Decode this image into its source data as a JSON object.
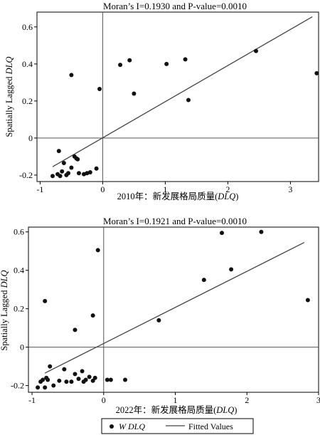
{
  "chart_data": [
    {
      "type": "scatter",
      "title": "Moran’s I=0.1930 and P-value=0.0010",
      "xlabel_prefix": "2010年：新发展格局质量(",
      "xlabel_var": "DLQ",
      "xlabel_suffix": ")",
      "ylabel_prefix": "Spatially Lagged ",
      "ylabel_var": "DLQ",
      "xlim": [
        -1.05,
        3.45
      ],
      "ylim": [
        -0.235,
        0.68
      ],
      "xticks": [
        -1,
        0,
        1,
        2,
        3
      ],
      "xtick_labels": [
        "-1",
        "0",
        "1",
        "2",
        "3"
      ],
      "yticks": [
        -0.2,
        0,
        0.2,
        0.4,
        0.6
      ],
      "ytick_labels": [
        "-0.2",
        "0",
        "0.2",
        "0.4",
        "0.6"
      ],
      "x": [
        -0.8,
        -0.72,
        -0.7,
        -0.68,
        -0.65,
        -0.62,
        -0.58,
        -0.55,
        -0.5,
        -0.45,
        -0.42,
        -0.4,
        -0.38,
        -0.3,
        -0.25,
        -0.2,
        -0.1,
        -0.5,
        -0.05,
        0.28,
        0.43,
        0.5,
        1.02,
        1.32,
        1.37,
        2.45,
        3.42
      ],
      "y": [
        -0.205,
        -0.195,
        -0.07,
        -0.205,
        -0.18,
        -0.135,
        -0.2,
        -0.19,
        -0.16,
        -0.1,
        -0.11,
        -0.115,
        -0.19,
        -0.195,
        -0.19,
        -0.185,
        -0.165,
        0.34,
        0.265,
        0.395,
        0.42,
        0.24,
        0.4,
        0.425,
        0.205,
        0.47,
        0.35
      ],
      "fit": {
        "x": [
          -0.8,
          3.35
        ],
        "y": [
          -0.155,
          0.655
        ]
      }
    },
    {
      "type": "scatter",
      "title": "Moran’s I=0.1921 and P-value=0.0010",
      "xlabel_prefix": "2022年：新发展格局质量(",
      "xlabel_var": "DLQ",
      "xlabel_suffix": ")",
      "ylabel_prefix": "Spatially Lagged ",
      "ylabel_var": "DLQ",
      "xlim": [
        -1.05,
        3.0
      ],
      "ylim": [
        -0.235,
        0.625
      ],
      "xticks": [
        -1,
        0,
        1,
        2,
        3
      ],
      "xtick_labels": [
        "-1",
        "0",
        "1",
        "2",
        "3"
      ],
      "yticks": [
        -0.2,
        0,
        0.2,
        0.4,
        0.6
      ],
      "ytick_labels": [
        "-0.2",
        "0",
        "0.2",
        "0.4",
        "0.6"
      ],
      "x": [
        -0.92,
        -0.88,
        -0.85,
        -0.82,
        -0.8,
        -0.78,
        -0.75,
        -0.7,
        -0.62,
        -0.55,
        -0.52,
        -0.45,
        -0.4,
        -0.35,
        -0.3,
        -0.28,
        -0.25,
        -0.2,
        -0.15,
        -0.12,
        0.05,
        0.1,
        0.3,
        -0.82,
        -0.4,
        -0.15,
        -0.08,
        0.77,
        1.4,
        1.65,
        1.78,
        2.2,
        2.85
      ],
      "y": [
        -0.21,
        -0.18,
        -0.17,
        -0.21,
        -0.16,
        -0.17,
        -0.1,
        -0.2,
        -0.175,
        -0.115,
        -0.18,
        -0.18,
        -0.14,
        -0.165,
        -0.125,
        -0.18,
        -0.17,
        -0.155,
        -0.175,
        -0.16,
        -0.17,
        -0.17,
        -0.17,
        0.24,
        0.09,
        0.165,
        0.505,
        0.14,
        0.35,
        0.595,
        0.405,
        0.6,
        0.245
      ],
      "fit": {
        "x": [
          -0.82,
          2.8
        ],
        "y": [
          -0.135,
          0.545
        ]
      }
    }
  ],
  "legend": {
    "placement": "bottom",
    "points_label_prefix": "W ",
    "points_label_var": "DLQ",
    "line_label": "Fitted Values"
  }
}
